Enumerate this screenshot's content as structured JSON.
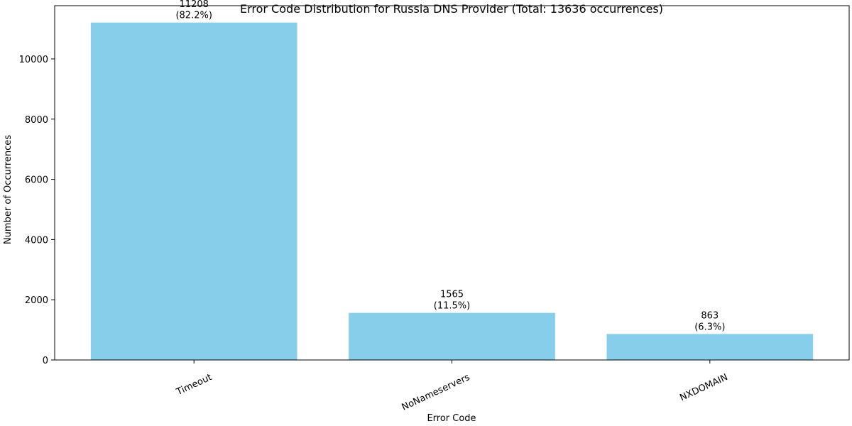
{
  "chart_data": {
    "type": "bar",
    "title": "Error Code Distribution for Russia DNS Provider (Total: 13636 occurrences)",
    "xlabel": "Error Code",
    "ylabel": "Number of Occurrences",
    "categories": [
      "Timeout",
      "NoNameservers",
      "NXDOMAIN"
    ],
    "values": [
      11208,
      1565,
      863
    ],
    "bar_labels": [
      [
        "11208",
        "(82.2%)"
      ],
      [
        "1565",
        "(11.5%)"
      ],
      [
        "863",
        "(6.3%)"
      ]
    ],
    "yticks": [
      0,
      2000,
      4000,
      6000,
      8000,
      10000
    ],
    "ylim": [
      0,
      11768
    ],
    "grid": false,
    "bar_color": "#87ceeb"
  }
}
